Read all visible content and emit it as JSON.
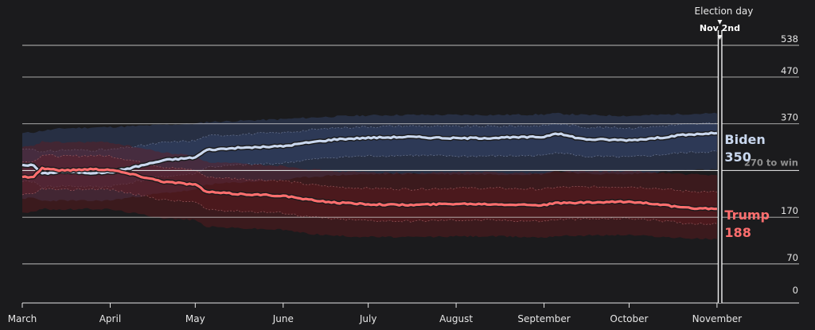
{
  "chart_data": {
    "type": "line",
    "title": "",
    "xlabel": "",
    "ylabel": "",
    "ylim": [
      0,
      538
    ],
    "yticks": [
      0,
      70,
      170,
      270,
      370,
      470,
      538
    ],
    "ytick_labels": [
      "0",
      "70",
      "170",
      "",
      "370",
      "470",
      "538"
    ],
    "xlim": [
      "2020-03-01",
      "2020-11-03"
    ],
    "month_ticks": [
      {
        "date": "2020-03-01",
        "label": "March"
      },
      {
        "date": "2020-04-01",
        "label": "April"
      },
      {
        "date": "2020-05-01",
        "label": "May"
      },
      {
        "date": "2020-06-01",
        "label": "June"
      },
      {
        "date": "2020-07-01",
        "label": "July"
      },
      {
        "date": "2020-08-01",
        "label": "August"
      },
      {
        "date": "2020-09-01",
        "label": "September"
      },
      {
        "date": "2020-10-01",
        "label": "October"
      },
      {
        "date": "2020-11-01",
        "label": "November"
      }
    ],
    "threshold": {
      "value": 270,
      "label": "270 to win"
    },
    "election_day": {
      "date": "2020-11-02",
      "title": "Election day",
      "label": "Nov 2nd"
    },
    "grid": true,
    "series": [
      {
        "name": "Biden",
        "final_value": "350",
        "color": "#c9d7ee",
        "band_color": "#3a4d7a",
        "dates": [
          "2020-03-01",
          "2020-03-05",
          "2020-03-08",
          "2020-03-15",
          "2020-03-25",
          "2020-04-01",
          "2020-04-10",
          "2020-04-20",
          "2020-05-01",
          "2020-05-05",
          "2020-05-15",
          "2020-06-01",
          "2020-06-10",
          "2020-06-20",
          "2020-07-01",
          "2020-07-15",
          "2020-08-01",
          "2020-08-15",
          "2020-09-01",
          "2020-09-05",
          "2020-09-15",
          "2020-10-01",
          "2020-10-10",
          "2020-10-20",
          "2020-11-01"
        ],
        "values": [
          282,
          281,
          263,
          268,
          265,
          266,
          278,
          292,
          298,
          314,
          318,
          322,
          330,
          337,
          340,
          342,
          339,
          340,
          342,
          350,
          337,
          335,
          339,
          346,
          350
        ],
        "upper": [
          350,
          352,
          355,
          360,
          362,
          363,
          365,
          368,
          370,
          374,
          376,
          380,
          383,
          386,
          388,
          389,
          389,
          389,
          390,
          392,
          389,
          387,
          389,
          391,
          392
        ],
        "lower": [
          210,
          211,
          205,
          206,
          205,
          206,
          214,
          222,
          228,
          240,
          244,
          250,
          256,
          260,
          262,
          263,
          262,
          262,
          262,
          270,
          263,
          262,
          266,
          270,
          272
        ]
      },
      {
        "name": "Trump",
        "final_value": "188",
        "color": "#ff6e6e",
        "band_color": "#6a1a1f",
        "dates": [
          "2020-03-01",
          "2020-03-05",
          "2020-03-08",
          "2020-03-15",
          "2020-03-25",
          "2020-04-01",
          "2020-04-10",
          "2020-04-20",
          "2020-05-01",
          "2020-05-05",
          "2020-05-15",
          "2020-06-01",
          "2020-06-10",
          "2020-06-20",
          "2020-07-01",
          "2020-07-15",
          "2020-08-01",
          "2020-08-15",
          "2020-09-01",
          "2020-09-05",
          "2020-09-15",
          "2020-10-01",
          "2020-10-10",
          "2020-10-20",
          "2020-11-01"
        ],
        "values": [
          256,
          257,
          275,
          270,
          273,
          272,
          260,
          246,
          240,
          224,
          220,
          216,
          207,
          201,
          198,
          196,
          199,
          198,
          196,
          200,
          201,
          203,
          199,
          190,
          188
        ],
        "upper": [
          320,
          322,
          332,
          330,
          331,
          330,
          320,
          308,
          302,
          288,
          285,
          280,
          273,
          268,
          266,
          264,
          266,
          266,
          264,
          268,
          268,
          268,
          266,
          262,
          260
        ],
        "lower": [
          180,
          181,
          188,
          186,
          188,
          187,
          178,
          168,
          164,
          150,
          147,
          143,
          135,
          130,
          128,
          127,
          129,
          129,
          127,
          130,
          131,
          132,
          129,
          125,
          123
        ]
      }
    ]
  }
}
